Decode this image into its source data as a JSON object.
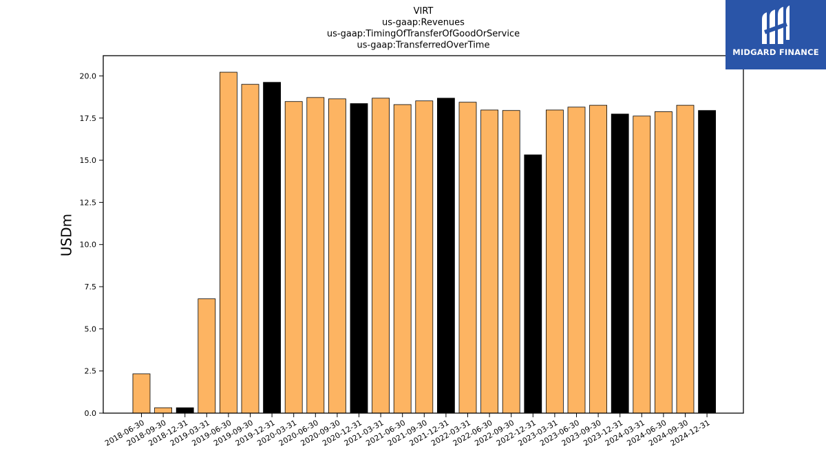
{
  "chart_data": {
    "type": "bar",
    "title_lines": [
      "VIRT",
      "us-gaap:Revenues",
      "us-gaap:TimingOfTransferOfGoodOrService",
      "us-gaap:TransferredOverTime"
    ],
    "ylabel": "USDm",
    "xlabel": "",
    "ylim": [
      0,
      21.2
    ],
    "yticks": [
      "0.0",
      "2.5",
      "5.0",
      "7.5",
      "10.0",
      "12.5",
      "15.0",
      "17.5",
      "20.0"
    ],
    "grid": false,
    "colors": {
      "quarter": "#fdb462",
      "year_end": "#000000"
    },
    "categories": [
      "2018-06-30",
      "2018-09-30",
      "2018-12-31",
      "2019-03-31",
      "2019-06-30",
      "2019-09-30",
      "2019-12-31",
      "2020-03-31",
      "2020-06-30",
      "2020-09-30",
      "2020-12-31",
      "2021-03-31",
      "2021-06-30",
      "2021-09-30",
      "2021-12-31",
      "2022-03-31",
      "2022-06-30",
      "2022-09-30",
      "2022-12-31",
      "2023-03-31",
      "2023-06-30",
      "2023-09-30",
      "2023-12-31",
      "2024-03-31",
      "2024-06-30",
      "2024-09-30",
      "2024-12-31"
    ],
    "values": [
      2.33,
      0.32,
      0.32,
      6.78,
      20.22,
      19.5,
      19.62,
      18.48,
      18.72,
      18.64,
      18.36,
      18.68,
      18.3,
      18.52,
      18.68,
      18.44,
      17.98,
      17.95,
      15.32,
      17.98,
      18.15,
      18.26,
      17.74,
      17.62,
      17.88,
      18.26,
      17.95
    ]
  },
  "logo": {
    "text": "MIDGARD FINANCE"
  }
}
